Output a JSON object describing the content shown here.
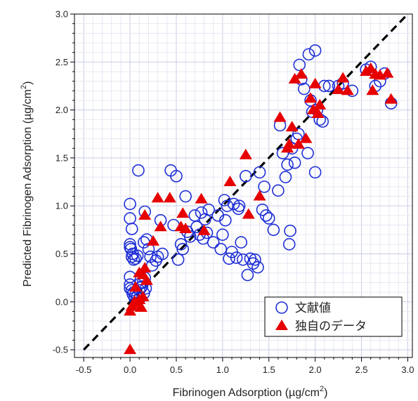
{
  "chart_data": {
    "type": "scatter",
    "xlabel": "Fibrinogen Adsorption (µg/cm",
    "xlabel_sup": "2",
    "xlabel_suffix": ")",
    "ylabel": "Predicted Fibrinogen Adsorption (µg/cm",
    "ylabel_sup": "2",
    "ylabel_suffix": ")",
    "xlim": [
      -0.6,
      3.05
    ],
    "ylim": [
      -0.58,
      3.0
    ],
    "xticks": [
      "-0.5",
      "0.0",
      "0.5",
      "1.0",
      "1.5",
      "2.0",
      "2.5",
      "3.0"
    ],
    "yticks": [
      "-0.5",
      "0.0",
      "0.5",
      "1.0",
      "1.5",
      "2.0",
      "2.5",
      "3.0"
    ],
    "grid": true,
    "legend_position": "bottom-right",
    "reference_line": {
      "style": "dashed",
      "color": "#000000",
      "from": [
        -0.5,
        -0.5
      ],
      "to": [
        3.0,
        3.0
      ]
    },
    "series": [
      {
        "name": "文献値",
        "marker": "circle-open",
        "color": "#1f2fd6",
        "points": [
          [
            0.0,
            1.02
          ],
          [
            0.0,
            0.87
          ],
          [
            0.02,
            0.76
          ],
          [
            0.0,
            0.6
          ],
          [
            0.0,
            0.57
          ],
          [
            0.01,
            0.55
          ],
          [
            0.03,
            0.5
          ],
          [
            0.02,
            0.47
          ],
          [
            0.04,
            0.44
          ],
          [
            0.06,
            0.45
          ],
          [
            0.08,
            0.48
          ],
          [
            0.0,
            0.26
          ],
          [
            0.0,
            0.18
          ],
          [
            0.0,
            0.14
          ],
          [
            0.02,
            0.12
          ],
          [
            0.04,
            0.1
          ],
          [
            0.06,
            0.08
          ],
          [
            0.08,
            0.06
          ],
          [
            0.1,
            0.12
          ],
          [
            0.12,
            0.15
          ],
          [
            0.14,
            0.2
          ],
          [
            0.16,
            0.25
          ],
          [
            0.03,
            0.08
          ],
          [
            0.05,
            0.04
          ],
          [
            0.1,
            0.03
          ],
          [
            0.15,
            0.09
          ],
          [
            0.17,
            0.14
          ],
          [
            0.11,
            0.19
          ],
          [
            0.13,
            0.16
          ],
          [
            0.09,
            1.37
          ],
          [
            0.15,
            0.62
          ],
          [
            0.18,
            0.65
          ],
          [
            0.2,
            0.55
          ],
          [
            0.22,
            0.47
          ],
          [
            0.16,
            0.94
          ],
          [
            0.24,
            0.38
          ],
          [
            0.28,
            0.43
          ],
          [
            0.3,
            0.47
          ],
          [
            0.33,
            0.85
          ],
          [
            0.35,
            0.5
          ],
          [
            0.44,
            1.37
          ],
          [
            0.47,
            0.8
          ],
          [
            0.5,
            1.31
          ],
          [
            0.52,
            0.44
          ],
          [
            0.55,
            0.6
          ],
          [
            0.57,
            0.55
          ],
          [
            0.6,
            1.1
          ],
          [
            0.62,
            0.73
          ],
          [
            0.65,
            0.68
          ],
          [
            0.7,
            0.9
          ],
          [
            0.72,
            0.78
          ],
          [
            0.75,
            0.7
          ],
          [
            0.77,
            0.93
          ],
          [
            0.79,
            0.66
          ],
          [
            0.81,
            0.86
          ],
          [
            0.83,
            0.72
          ],
          [
            0.85,
            0.96
          ],
          [
            0.9,
            0.62
          ],
          [
            0.95,
            0.9
          ],
          [
            0.98,
            0.55
          ],
          [
            1.0,
            0.7
          ],
          [
            1.02,
            1.06
          ],
          [
            1.03,
            0.85
          ],
          [
            1.05,
            1.0
          ],
          [
            1.07,
            0.45
          ],
          [
            1.1,
            0.52
          ],
          [
            1.12,
            1.02
          ],
          [
            1.15,
            0.46
          ],
          [
            1.17,
            0.97
          ],
          [
            1.18,
            1.0
          ],
          [
            1.2,
            0.62
          ],
          [
            1.22,
            0.44
          ],
          [
            1.25,
            1.31
          ],
          [
            1.27,
            0.28
          ],
          [
            1.3,
            0.45
          ],
          [
            1.33,
            0.4
          ],
          [
            1.35,
            0.44
          ],
          [
            1.38,
            0.36
          ],
          [
            1.4,
            1.35
          ],
          [
            1.43,
            0.96
          ],
          [
            1.45,
            1.2
          ],
          [
            1.47,
            0.9
          ],
          [
            1.5,
            0.87
          ],
          [
            1.55,
            0.75
          ],
          [
            1.6,
            1.16
          ],
          [
            1.62,
            1.84
          ],
          [
            1.65,
            1.55
          ],
          [
            1.68,
            1.3
          ],
          [
            1.7,
            1.43
          ],
          [
            1.72,
            0.6
          ],
          [
            1.73,
            0.74
          ],
          [
            1.75,
            1.6
          ],
          [
            1.78,
            1.45
          ],
          [
            1.8,
            1.7
          ],
          [
            1.82,
            1.75
          ],
          [
            1.83,
            2.47
          ],
          [
            1.85,
            2.32
          ],
          [
            1.88,
            2.22
          ],
          [
            1.92,
            1.55
          ],
          [
            1.93,
            2.58
          ],
          [
            1.95,
            2.1
          ],
          [
            1.97,
            1.98
          ],
          [
            2.0,
            1.35
          ],
          [
            2.0,
            2.62
          ],
          [
            2.02,
            2.0
          ],
          [
            2.05,
            1.9
          ],
          [
            2.08,
            1.88
          ],
          [
            2.1,
            2.25
          ],
          [
            2.15,
            2.25
          ],
          [
            2.25,
            2.25
          ],
          [
            2.3,
            2.28
          ],
          [
            2.4,
            2.2
          ],
          [
            2.55,
            2.42
          ],
          [
            2.6,
            2.45
          ],
          [
            2.65,
            2.25
          ],
          [
            2.7,
            2.3
          ],
          [
            2.75,
            2.38
          ],
          [
            2.82,
            2.07
          ]
        ]
      },
      {
        "name": "独自のデータ",
        "marker": "triangle-filled",
        "color": "#e60000",
        "points": [
          [
            0.0,
            -0.5
          ],
          [
            0.0,
            -0.1
          ],
          [
            0.02,
            -0.05
          ],
          [
            0.05,
            0.0
          ],
          [
            0.08,
            -0.02
          ],
          [
            0.1,
            0.02
          ],
          [
            0.12,
            -0.06
          ],
          [
            0.14,
            0.05
          ],
          [
            0.06,
            0.15
          ],
          [
            0.1,
            0.3
          ],
          [
            0.14,
            0.28
          ],
          [
            0.16,
            0.35
          ],
          [
            0.18,
            0.22
          ],
          [
            0.16,
            0.9
          ],
          [
            0.25,
            0.63
          ],
          [
            0.3,
            1.08
          ],
          [
            0.33,
            0.78
          ],
          [
            0.43,
            1.08
          ],
          [
            0.55,
            0.78
          ],
          [
            0.57,
            0.92
          ],
          [
            0.6,
            0.76
          ],
          [
            0.77,
            1.07
          ],
          [
            0.8,
            0.74
          ],
          [
            1.08,
            1.25
          ],
          [
            1.25,
            1.53
          ],
          [
            1.28,
            0.91
          ],
          [
            1.4,
            1.1
          ],
          [
            1.62,
            1.92
          ],
          [
            1.7,
            1.6
          ],
          [
            1.72,
            1.64
          ],
          [
            1.75,
            1.82
          ],
          [
            1.78,
            2.32
          ],
          [
            1.82,
            1.64
          ],
          [
            1.85,
            2.37
          ],
          [
            1.9,
            1.7
          ],
          [
            1.95,
            2.12
          ],
          [
            1.98,
            2.0
          ],
          [
            2.0,
            2.27
          ],
          [
            2.03,
            1.96
          ],
          [
            2.05,
            2.05
          ],
          [
            2.25,
            2.21
          ],
          [
            2.3,
            2.33
          ],
          [
            2.35,
            2.2
          ],
          [
            2.55,
            2.4
          ],
          [
            2.6,
            2.43
          ],
          [
            2.62,
            2.2
          ],
          [
            2.65,
            2.37
          ],
          [
            2.7,
            2.36
          ],
          [
            2.78,
            2.38
          ],
          [
            2.82,
            2.11
          ]
        ]
      }
    ]
  }
}
